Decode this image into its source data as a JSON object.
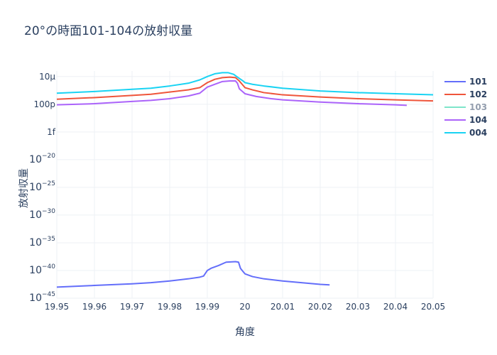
{
  "chart_data": {
    "type": "line",
    "title": "20°の時面101-104の放射収量",
    "xlabel": "角度",
    "ylabel": "放射収量",
    "y_scale": "log",
    "xlim": [
      19.95,
      20.05
    ],
    "ylim_log10": [
      -45,
      -4
    ],
    "x_ticks": [
      19.95,
      19.96,
      19.97,
      19.98,
      19.99,
      20,
      20.01,
      20.02,
      20.03,
      20.04,
      20.05
    ],
    "x_tick_labels": [
      "19.95",
      "19.96",
      "19.97",
      "19.98",
      "19.99",
      "20",
      "20.01",
      "20.02",
      "20.03",
      "20.04",
      "20.05"
    ],
    "y_ticks": [
      {
        "log10": -5,
        "label": "10μ",
        "sup": ""
      },
      {
        "log10": -10,
        "label": "100p",
        "sup": ""
      },
      {
        "log10": -15,
        "label": "1f",
        "sup": ""
      },
      {
        "log10": -20,
        "label": "10",
        "sup": "−20"
      },
      {
        "log10": -25,
        "label": "10",
        "sup": "−25"
      },
      {
        "log10": -30,
        "label": "10",
        "sup": "−30"
      },
      {
        "log10": -35,
        "label": "10",
        "sup": "−35"
      },
      {
        "log10": -40,
        "label": "10",
        "sup": "−40"
      },
      {
        "log10": -45,
        "label": "10",
        "sup": "−45"
      }
    ],
    "legend_position": "right",
    "series": [
      {
        "name": "101",
        "color": "#636efa",
        "visible": true,
        "points": [
          [
            19.95,
            -43.0
          ],
          [
            19.96,
            -42.7
          ],
          [
            19.97,
            -42.4
          ],
          [
            19.975,
            -42.2
          ],
          [
            19.98,
            -41.9
          ],
          [
            19.985,
            -41.5
          ],
          [
            19.988,
            -41.2
          ],
          [
            19.989,
            -41.0
          ],
          [
            19.99,
            -40.0
          ],
          [
            19.991,
            -39.6
          ],
          [
            19.993,
            -39.1
          ],
          [
            19.995,
            -38.5
          ],
          [
            19.9975,
            -38.4
          ],
          [
            19.9983,
            -38.5
          ],
          [
            19.9988,
            -39.6
          ],
          [
            19.9995,
            -40.2
          ],
          [
            20.0,
            -40.6
          ],
          [
            20.002,
            -41.1
          ],
          [
            20.005,
            -41.5
          ],
          [
            20.01,
            -41.9
          ],
          [
            20.015,
            -42.2
          ],
          [
            20.02,
            -42.5
          ],
          [
            20.0225,
            -42.6
          ]
        ]
      },
      {
        "name": "102",
        "color": "#ef553b",
        "visible": true,
        "points": [
          [
            19.95,
            -9.1
          ],
          [
            19.96,
            -8.8
          ],
          [
            19.97,
            -8.4
          ],
          [
            19.975,
            -8.2
          ],
          [
            19.98,
            -7.8
          ],
          [
            19.985,
            -7.4
          ],
          [
            19.988,
            -7.0
          ],
          [
            19.99,
            -6.1
          ],
          [
            19.992,
            -5.5
          ],
          [
            19.994,
            -5.2
          ],
          [
            19.996,
            -5.1
          ],
          [
            19.9975,
            -5.2
          ],
          [
            19.9985,
            -5.8
          ],
          [
            19.9995,
            -6.6
          ],
          [
            20.0,
            -7.0
          ],
          [
            20.002,
            -7.4
          ],
          [
            20.005,
            -7.9
          ],
          [
            20.01,
            -8.3
          ],
          [
            20.02,
            -8.7
          ],
          [
            20.03,
            -9.0
          ],
          [
            20.04,
            -9.2
          ],
          [
            20.05,
            -9.4
          ]
        ]
      },
      {
        "name": "103",
        "color": "#00cc96",
        "visible": false,
        "points": []
      },
      {
        "name": "104",
        "color": "#ab63fa",
        "visible": true,
        "points": [
          [
            19.95,
            -10.1
          ],
          [
            19.96,
            -9.9
          ],
          [
            19.97,
            -9.5
          ],
          [
            19.975,
            -9.3
          ],
          [
            19.98,
            -9.0
          ],
          [
            19.985,
            -8.5
          ],
          [
            19.988,
            -8.0
          ],
          [
            19.99,
            -6.9
          ],
          [
            19.992,
            -6.4
          ],
          [
            19.994,
            -5.9
          ],
          [
            19.996,
            -5.8
          ],
          [
            19.9975,
            -5.8
          ],
          [
            19.998,
            -6.2
          ],
          [
            19.9985,
            -7.2
          ],
          [
            19.9995,
            -7.8
          ],
          [
            20.0,
            -8.1
          ],
          [
            20.003,
            -8.6
          ],
          [
            20.007,
            -9.0
          ],
          [
            20.01,
            -9.2
          ],
          [
            20.02,
            -9.6
          ],
          [
            20.03,
            -9.9
          ],
          [
            20.04,
            -10.1
          ],
          [
            20.043,
            -10.2
          ]
        ]
      },
      {
        "name": "004",
        "color": "#19d3f3",
        "visible": true,
        "points": [
          [
            19.95,
            -8.0
          ],
          [
            19.96,
            -7.7
          ],
          [
            19.97,
            -7.3
          ],
          [
            19.975,
            -7.1
          ],
          [
            19.98,
            -6.7
          ],
          [
            19.985,
            -6.2
          ],
          [
            19.988,
            -5.6
          ],
          [
            19.99,
            -5.0
          ],
          [
            19.992,
            -4.5
          ],
          [
            19.994,
            -4.3
          ],
          [
            19.9955,
            -4.3
          ],
          [
            19.997,
            -4.6
          ],
          [
            19.998,
            -5.1
          ],
          [
            19.9995,
            -5.8
          ],
          [
            20.0,
            -6.1
          ],
          [
            20.002,
            -6.4
          ],
          [
            20.005,
            -6.7
          ],
          [
            20.01,
            -7.1
          ],
          [
            20.02,
            -7.6
          ],
          [
            20.03,
            -7.9
          ],
          [
            20.04,
            -8.1
          ],
          [
            20.05,
            -8.3
          ]
        ]
      }
    ]
  }
}
